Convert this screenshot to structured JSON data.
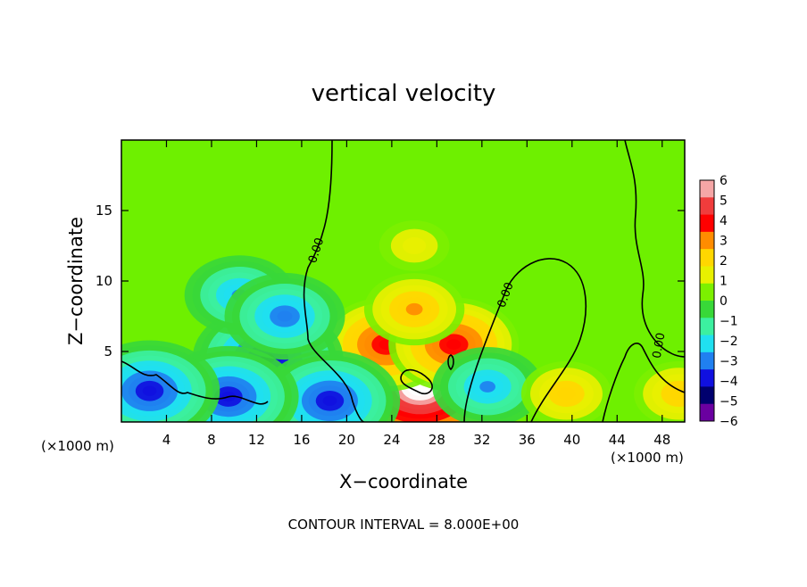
{
  "chart_data": {
    "type": "heatmap",
    "title": "vertical velocity",
    "xlabel": "X−coordinate",
    "ylabel": "Z−coordinate",
    "x_unit_left": "(×1000 m)",
    "x_unit_right": "(×1000 m)",
    "footer": "CONTOUR INTERVAL = 8.000E+00",
    "xlim": [
      0,
      50
    ],
    "ylim": [
      0,
      20
    ],
    "x_ticks": [
      4,
      8,
      12,
      16,
      20,
      24,
      28,
      32,
      36,
      40,
      44,
      48
    ],
    "y_ticks": [
      5,
      10,
      15
    ],
    "grid": false,
    "colorbar": {
      "levels": [
        6,
        5,
        4,
        3,
        2,
        1,
        0,
        -1,
        -2,
        -3,
        -4,
        -5,
        -6
      ],
      "labels": [
        "6",
        "5",
        "4",
        "3",
        "2",
        "1",
        "0",
        "−1",
        "−2",
        "−3",
        "−4",
        "−5",
        "−6"
      ],
      "colors": [
        "#f5a6a6",
        "#f03c3c",
        "#ff0000",
        "#ff8c00",
        "#ffd700",
        "#e8f000",
        "#7cf000",
        "#38d838",
        "#3cf0a0",
        "#20e0f0",
        "#2080f0",
        "#1010e0",
        "#00006e",
        "#6a00a0"
      ],
      "colorbar_ticks_note": ""
    },
    "contour_labels": [
      "0.00",
      "0.00",
      "0.00"
    ],
    "features": [
      {
        "x": 26.5,
        "z": 2.5,
        "w": 7.5,
        "kind": "updraft-core"
      },
      {
        "x": 23.5,
        "z": 5.5,
        "w": 4.5,
        "kind": "updraft"
      },
      {
        "x": 29.5,
        "z": 5.5,
        "w": 4.5,
        "kind": "updraft"
      },
      {
        "x": 26.0,
        "z": 8.0,
        "w": 3.0,
        "kind": "updraft"
      },
      {
        "x": 26.0,
        "z": 12.5,
        "w": 1.5,
        "kind": "updraft"
      },
      {
        "x": 13.0,
        "z": 4.5,
        "w": -5.5,
        "kind": "downdraft"
      },
      {
        "x": 10.5,
        "z": 9.0,
        "w": -3.5,
        "kind": "downdraft"
      },
      {
        "x": 14.5,
        "z": 7.5,
        "w": -4.0,
        "kind": "downdraft"
      },
      {
        "x": 18.5,
        "z": 1.5,
        "w": -5.0,
        "kind": "downdraft"
      },
      {
        "x": 9.5,
        "z": 1.8,
        "w": -5.0,
        "kind": "downdraft"
      },
      {
        "x": 2.5,
        "z": 2.2,
        "w": -5.0,
        "kind": "downdraft"
      },
      {
        "x": 32.5,
        "z": 2.5,
        "w": -3.5,
        "kind": "downdraft"
      },
      {
        "x": 39.5,
        "z": 2.0,
        "w": 2.5,
        "kind": "updraft"
      },
      {
        "x": 49.5,
        "z": 2.0,
        "w": 2.5,
        "kind": "updraft"
      }
    ]
  }
}
